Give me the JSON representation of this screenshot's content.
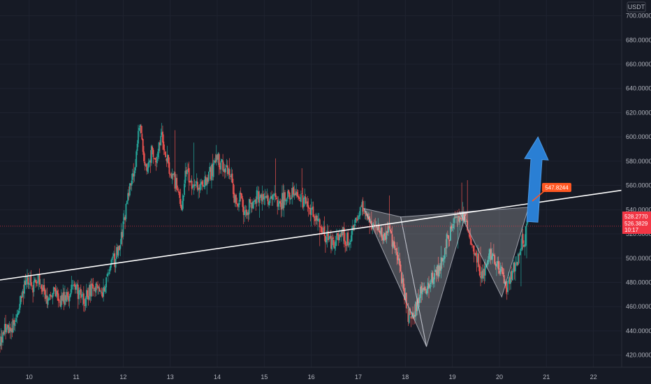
{
  "colors": {
    "background": "#161a25",
    "grid": "#1f2330",
    "axis_text": "#b2b5be",
    "candle_up": "#26a69a",
    "candle_down": "#ef5350",
    "neckline": "#ffffff",
    "pattern_fill": "#ffffff",
    "arrow": "#2a7fd4",
    "price_badge": "#f23645",
    "callout_badge": "#ff5722"
  },
  "currency_label": "USDT",
  "price_badge": {
    "price_1": "528.2770",
    "price_2": "526.3829",
    "countdown": "10:17"
  },
  "callout": {
    "value": "547.8244"
  },
  "chart_data": {
    "type": "candlestick",
    "x_ticks": [
      "10",
      "11",
      "12",
      "13",
      "14",
      "15",
      "16",
      "17",
      "18",
      "19",
      "20",
      "21",
      "22"
    ],
    "y_ticks": [
      "420.0000",
      "440.0000",
      "460.0000",
      "480.0000",
      "500.0000",
      "520.0000",
      "540.0000",
      "560.0000",
      "580.0000",
      "600.0000",
      "620.0000",
      "640.0000",
      "660.0000",
      "680.0000",
      "700.0000"
    ],
    "xlim": [
      9.38,
      22.6
    ],
    "ylim": [
      410,
      713
    ],
    "grid": true,
    "price_path": [
      [
        9.38,
        430
      ],
      [
        9.5,
        442
      ],
      [
        9.6,
        438
      ],
      [
        9.75,
        452
      ],
      [
        9.85,
        472
      ],
      [
        9.95,
        485
      ],
      [
        10.05,
        475
      ],
      [
        10.2,
        483
      ],
      [
        10.35,
        468
      ],
      [
        10.5,
        472
      ],
      [
        10.65,
        464
      ],
      [
        10.8,
        470
      ],
      [
        11.0,
        476
      ],
      [
        11.15,
        466
      ],
      [
        11.3,
        472
      ],
      [
        11.45,
        478
      ],
      [
        11.55,
        470
      ],
      [
        11.7,
        490
      ],
      [
        11.85,
        502
      ],
      [
        11.95,
        515
      ],
      [
        12.05,
        540
      ],
      [
        12.15,
        565
      ],
      [
        12.25,
        572
      ],
      [
        12.32,
        600
      ],
      [
        12.36,
        612
      ],
      [
        12.42,
        585
      ],
      [
        12.5,
        570
      ],
      [
        12.6,
        590
      ],
      [
        12.72,
        585
      ],
      [
        12.8,
        605
      ],
      [
        12.9,
        588
      ],
      [
        13.0,
        570
      ],
      [
        13.15,
        560
      ],
      [
        13.25,
        545
      ],
      [
        13.35,
        575
      ],
      [
        13.45,
        560
      ],
      [
        13.6,
        558
      ],
      [
        13.75,
        565
      ],
      [
        13.9,
        575
      ],
      [
        14.05,
        580
      ],
      [
        14.2,
        572
      ],
      [
        14.3,
        565
      ],
      [
        14.4,
        545
      ],
      [
        14.5,
        548
      ],
      [
        14.6,
        535
      ],
      [
        14.75,
        548
      ],
      [
        14.9,
        550
      ],
      [
        15.05,
        548
      ],
      [
        15.2,
        550
      ],
      [
        15.35,
        545
      ],
      [
        15.5,
        552
      ],
      [
        15.7,
        550
      ],
      [
        15.85,
        548
      ],
      [
        16.0,
        540
      ],
      [
        16.15,
        528
      ],
      [
        16.25,
        520
      ],
      [
        16.35,
        515
      ],
      [
        16.5,
        512
      ],
      [
        16.65,
        520
      ],
      [
        16.8,
        512
      ],
      [
        16.95,
        530
      ],
      [
        17.05,
        540
      ],
      [
        17.15,
        535
      ],
      [
        17.25,
        528
      ],
      [
        17.4,
        524
      ],
      [
        17.55,
        518
      ],
      [
        17.65,
        522
      ],
      [
        17.75,
        512
      ],
      [
        17.85,
        498
      ],
      [
        17.95,
        475
      ],
      [
        18.05,
        455
      ],
      [
        18.15,
        452
      ],
      [
        18.25,
        462
      ],
      [
        18.35,
        478
      ],
      [
        18.45,
        472
      ],
      [
        18.55,
        482
      ],
      [
        18.65,
        488
      ],
      [
        18.75,
        492
      ],
      [
        18.85,
        510
      ],
      [
        18.95,
        522
      ],
      [
        19.05,
        530
      ],
      [
        19.15,
        535
      ],
      [
        19.25,
        532
      ],
      [
        19.35,
        518
      ],
      [
        19.45,
        505
      ],
      [
        19.55,
        495
      ],
      [
        19.65,
        486
      ],
      [
        19.75,
        495
      ],
      [
        19.85,
        505
      ],
      [
        19.95,
        500
      ],
      [
        20.05,
        490
      ],
      [
        20.15,
        475
      ],
      [
        20.25,
        488
      ],
      [
        20.35,
        496
      ],
      [
        20.45,
        508
      ],
      [
        20.55,
        520
      ],
      [
        20.62,
        530
      ]
    ],
    "neckline": [
      [
        9.38,
        482
      ],
      [
        22.6,
        556
      ]
    ],
    "pattern_polygons": [
      [
        [
          17.12,
          541
        ],
        [
          17.9,
          534
        ],
        [
          18.45,
          427
        ],
        [
          17.12,
          541
        ]
      ],
      [
        [
          17.9,
          534
        ],
        [
          19.3,
          538
        ],
        [
          18.45,
          427
        ],
        [
          17.9,
          534
        ]
      ],
      [
        [
          19.15,
          538
        ],
        [
          20.62,
          542
        ],
        [
          20.05,
          468
        ],
        [
          19.15,
          538
        ]
      ]
    ],
    "arrow": {
      "from": [
        20.7,
        530
      ],
      "to": [
        20.82,
        600
      ]
    },
    "current_price_level": 526.4
  }
}
